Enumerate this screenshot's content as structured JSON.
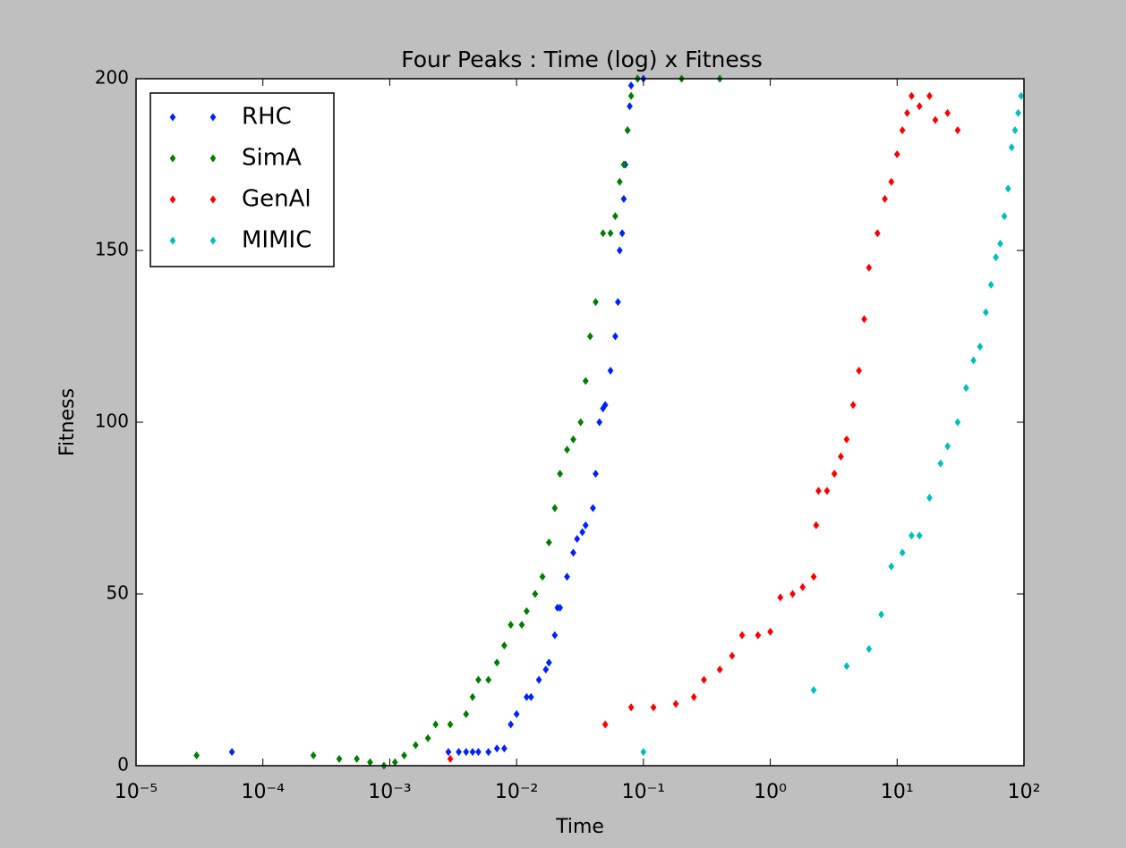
{
  "chart_data": {
    "type": "scatter",
    "title": "Four Peaks : Time (log) x Fitness",
    "x_label": "Time",
    "y_label": "Fitness",
    "x_scale": "log",
    "grid": false,
    "legend": "upper left",
    "xlim": [
      1e-05,
      100
    ],
    "ylim": [
      0,
      200
    ],
    "xticks": [
      {
        "value": 1e-05,
        "label": "10⁻⁵"
      },
      {
        "value": 0.0001,
        "label": "10⁻⁴"
      },
      {
        "value": 0.001,
        "label": "10⁻³"
      },
      {
        "value": 0.01,
        "label": "10⁻²"
      },
      {
        "value": 0.1,
        "label": "10⁻¹"
      },
      {
        "value": 1,
        "label": "10⁰"
      },
      {
        "value": 10,
        "label": "10¹"
      },
      {
        "value": 100,
        "label": "10²"
      }
    ],
    "yticks": [
      0,
      50,
      100,
      150,
      200
    ],
    "series": [
      {
        "name": "RHC",
        "color": "#0022ff",
        "x": [
          5.7e-05,
          0.0029,
          0.0035,
          0.004,
          0.0045,
          0.005,
          0.006,
          0.007,
          0.008,
          0.009,
          0.01,
          0.012,
          0.013,
          0.015,
          0.017,
          0.018,
          0.02,
          0.021,
          0.022,
          0.025,
          0.028,
          0.03,
          0.033,
          0.035,
          0.04,
          0.042,
          0.045,
          0.048,
          0.05,
          0.055,
          0.06,
          0.063,
          0.065,
          0.068,
          0.07,
          0.072,
          0.075,
          0.078,
          0.08,
          0.09,
          0.1
        ],
        "y": [
          4,
          4,
          4,
          4,
          4,
          4,
          4,
          5,
          5,
          12,
          15,
          20,
          20,
          25,
          28,
          30,
          38,
          46,
          46,
          55,
          62,
          66,
          68,
          70,
          75,
          85,
          100,
          104,
          105,
          115,
          125,
          135,
          150,
          155,
          165,
          175,
          185,
          192,
          198,
          200,
          200
        ]
      },
      {
        "name": "SimA",
        "color": "#007f00",
        "x": [
          3e-05,
          0.00025,
          0.0004,
          0.00055,
          0.0007,
          0.0009,
          0.0011,
          0.0013,
          0.0016,
          0.002,
          0.0023,
          0.003,
          0.004,
          0.0045,
          0.005,
          0.006,
          0.007,
          0.008,
          0.009,
          0.011,
          0.012,
          0.014,
          0.016,
          0.018,
          0.02,
          0.022,
          0.025,
          0.028,
          0.032,
          0.035,
          0.038,
          0.042,
          0.048,
          0.055,
          0.06,
          0.065,
          0.07,
          0.075,
          0.08,
          0.09,
          0.2,
          0.4
        ],
        "y": [
          3,
          3,
          2,
          2,
          1,
          0,
          1,
          3,
          6,
          8,
          12,
          12,
          15,
          20,
          25,
          25,
          30,
          35,
          41,
          41,
          45,
          50,
          55,
          65,
          75,
          85,
          92,
          95,
          100,
          112,
          125,
          135,
          155,
          155,
          160,
          170,
          175,
          185,
          195,
          200,
          200,
          200
        ]
      },
      {
        "name": "GenAl",
        "color": "#ff0000",
        "x": [
          0.003,
          0.05,
          0.08,
          0.12,
          0.18,
          0.25,
          0.3,
          0.4,
          0.5,
          0.6,
          0.8,
          1,
          1.2,
          1.5,
          1.8,
          2.2,
          2.3,
          2.4,
          2.8,
          3.2,
          3.6,
          4,
          4.5,
          5,
          5.5,
          6,
          7,
          8,
          9,
          10,
          11,
          12,
          13,
          15,
          18,
          20,
          25,
          30
        ],
        "y": [
          2,
          12,
          17,
          17,
          18,
          20,
          25,
          28,
          32,
          38,
          38,
          39,
          49,
          50,
          52,
          55,
          70,
          80,
          80,
          85,
          90,
          95,
          105,
          115,
          130,
          145,
          155,
          165,
          170,
          178,
          185,
          190,
          195,
          192,
          195,
          188,
          190,
          185
        ]
      },
      {
        "name": "MIMIC",
        "color": "#00bfbf",
        "x": [
          0.1,
          2.2,
          4,
          6,
          7.5,
          9,
          11,
          13,
          15,
          18,
          22,
          25,
          30,
          35,
          40,
          45,
          50,
          55,
          60,
          65,
          70,
          75,
          80,
          85,
          90,
          95
        ],
        "y": [
          4,
          22,
          29,
          34,
          44,
          58,
          62,
          67,
          67,
          78,
          88,
          93,
          100,
          110,
          118,
          122,
          132,
          140,
          148,
          152,
          160,
          168,
          180,
          185,
          190,
          195
        ]
      }
    ]
  }
}
